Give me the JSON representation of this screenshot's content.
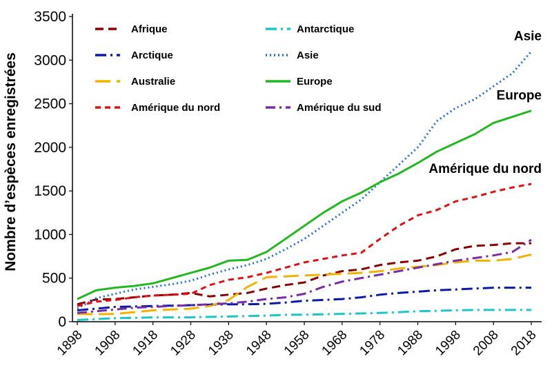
{
  "chart_data": {
    "type": "line",
    "title": "",
    "xlabel": "",
    "ylabel": "Nombre d’espèces enregistrées",
    "x": [
      1898,
      1903,
      1908,
      1913,
      1918,
      1923,
      1928,
      1933,
      1938,
      1943,
      1948,
      1953,
      1958,
      1963,
      1968,
      1973,
      1978,
      1983,
      1988,
      1993,
      1998,
      2003,
      2008,
      2013,
      2018
    ],
    "x_ticks": [
      "1898",
      "1908",
      "1918",
      "1928",
      "1938",
      "1948",
      "1958",
      "1968",
      "1978",
      "1988",
      "1998",
      "2008",
      "2018"
    ],
    "ylim": [
      0,
      3500
    ],
    "y_ticks": [
      "0",
      "500",
      "1000",
      "1500",
      "2000",
      "2500",
      "3000",
      "3500"
    ],
    "grid": false,
    "legend_position": "top",
    "series": [
      {
        "name": "Afrique",
        "color": "#8b0000",
        "dash": "12,7",
        "values": [
          200,
          255,
          260,
          280,
          300,
          310,
          330,
          290,
          310,
          330,
          380,
          420,
          450,
          530,
          580,
          600,
          650,
          680,
          700,
          750,
          830,
          870,
          880,
          900,
          900
        ]
      },
      {
        "name": "Antarctique",
        "color": "#19c7c7",
        "dash": "16,6,3,6",
        "values": [
          20,
          30,
          40,
          45,
          50,
          50,
          50,
          55,
          60,
          65,
          70,
          80,
          80,
          85,
          90,
          95,
          100,
          110,
          120,
          125,
          130,
          135,
          135,
          135,
          135
        ]
      },
      {
        "name": "Arctique",
        "color": "#0a1aa8",
        "dash": "16,6,3,6",
        "values": [
          130,
          150,
          170,
          175,
          180,
          185,
          190,
          195,
          200,
          200,
          205,
          220,
          240,
          250,
          260,
          280,
          310,
          330,
          345,
          360,
          370,
          380,
          390,
          390,
          390
        ]
      },
      {
        "name": "Asie",
        "color": "#1e6fd9",
        "dash": "2,4",
        "values": [
          150,
          270,
          320,
          370,
          400,
          430,
          470,
          540,
          600,
          650,
          720,
          830,
          950,
          1100,
          1250,
          1400,
          1600,
          1800,
          2000,
          2300,
          2450,
          2550,
          2700,
          2850,
          3100
        ]
      },
      {
        "name": "Australie",
        "color": "#f2b200",
        "dash": "22,9",
        "values": [
          90,
          85,
          90,
          110,
          130,
          140,
          150,
          180,
          250,
          400,
          510,
          520,
          530,
          540,
          550,
          560,
          580,
          610,
          630,
          650,
          680,
          700,
          700,
          720,
          770
        ]
      },
      {
        "name": "Europe",
        "color": "#1fb81f",
        "dash": "",
        "values": [
          260,
          360,
          390,
          410,
          440,
          500,
          560,
          620,
          700,
          710,
          800,
          950,
          1100,
          1250,
          1380,
          1480,
          1600,
          1700,
          1820,
          1950,
          2050,
          2150,
          2280,
          2350,
          2420
        ]
      },
      {
        "name": "Amérique du nord",
        "color": "#e01010",
        "dash": "8,6",
        "values": [
          180,
          230,
          250,
          280,
          300,
          310,
          320,
          420,
          480,
          510,
          560,
          620,
          680,
          720,
          760,
          790,
          950,
          1100,
          1220,
          1280,
          1380,
          1430,
          1490,
          1540,
          1580
        ]
      },
      {
        "name": "Amérique du sud",
        "color": "#7a2aa8",
        "dash": "14,6,3,6",
        "values": [
          100,
          120,
          140,
          160,
          170,
          180,
          190,
          200,
          210,
          230,
          260,
          280,
          320,
          400,
          460,
          500,
          540,
          580,
          620,
          660,
          700,
          730,
          760,
          800,
          940
        ]
      }
    ],
    "annotations": [
      {
        "text": "Asie",
        "series": "Asie"
      },
      {
        "text": "Europe",
        "series": "Europe"
      },
      {
        "text": "Amérique du nord",
        "series": "Amérique du nord"
      }
    ]
  }
}
